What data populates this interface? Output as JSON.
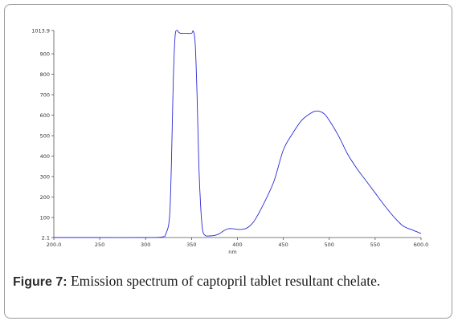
{
  "caption": {
    "label": "Figure 7:",
    "text": " Emission spectrum of captopril tablet resultant chelate."
  },
  "chart_data": {
    "type": "line",
    "xlabel": "nm",
    "ylabel": "",
    "title": "",
    "xlim": [
      200,
      600
    ],
    "ylim": [
      2.1,
      1013.9
    ],
    "x_ticks": [
      200,
      250,
      300,
      350,
      400,
      450,
      500,
      550,
      600
    ],
    "x_tick_labels": [
      "200.0",
      "250",
      "300",
      "350",
      "400",
      "450",
      "500",
      "550",
      "600.0"
    ],
    "y_ticks": [
      2.1,
      100,
      200,
      300,
      400,
      500,
      600,
      700,
      800,
      900,
      1013.9
    ],
    "y_tick_labels": [
      "2.1",
      "100",
      "200",
      "300",
      "400",
      "500",
      "600",
      "700",
      "800",
      "900",
      "1013.9"
    ],
    "line_color": "#2a2ad6",
    "grid": false,
    "series": [
      {
        "x": [
          200,
          250,
          300,
          318,
          322,
          326,
          328,
          330,
          332,
          334,
          336,
          338,
          340,
          345,
          350,
          352,
          354,
          356,
          358,
          360,
          362,
          365,
          370,
          375,
          380,
          385,
          390,
          395,
          400,
          405,
          410,
          415,
          420,
          430,
          440,
          450,
          460,
          470,
          480,
          485,
          490,
          495,
          500,
          510,
          520,
          530,
          540,
          550,
          560,
          570,
          580,
          590,
          600
        ],
        "y": [
          2.1,
          2.1,
          2.1,
          5,
          20,
          100,
          350,
          750,
          980,
          1013.9,
          1005,
          1000,
          1000,
          1000,
          1000,
          1010,
          950,
          700,
          350,
          150,
          40,
          12,
          10,
          12,
          20,
          35,
          45,
          45,
          42,
          42,
          48,
          65,
          95,
          180,
          280,
          430,
          510,
          575,
          610,
          620,
          618,
          605,
          575,
          500,
          410,
          340,
          280,
          220,
          160,
          105,
          60,
          40,
          22
        ]
      }
    ]
  }
}
